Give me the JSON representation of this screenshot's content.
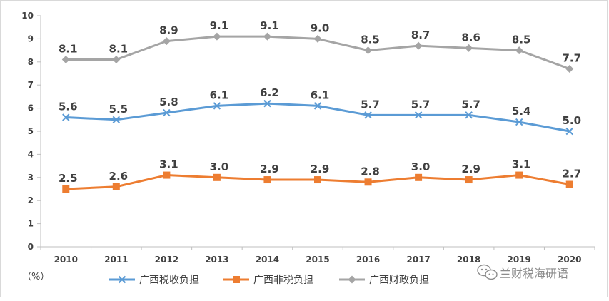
{
  "chart_data": {
    "type": "line",
    "x": [
      "2010",
      "2011",
      "2012",
      "2013",
      "2014",
      "2015",
      "2016",
      "2017",
      "2018",
      "2019",
      "2020"
    ],
    "ylim": [
      0,
      10
    ],
    "yticks": [
      "0",
      "1",
      "2",
      "3",
      "4",
      "5",
      "6",
      "7",
      "8",
      "9",
      "10"
    ],
    "unit_label": "（%）",
    "grid": false,
    "legend_position": "bottom",
    "series": [
      {
        "name": "广西税收负担",
        "color": "#5b9bd5",
        "marker": "x",
        "values": [
          5.6,
          5.5,
          5.8,
          6.1,
          6.2,
          6.1,
          5.7,
          5.7,
          5.7,
          5.4,
          5.0
        ],
        "labels": [
          "5.6",
          "5.5",
          "5.8",
          "6.1",
          "6.2",
          "6.1",
          "5.7",
          "5.7",
          "5.7",
          "5.4",
          "5.0"
        ]
      },
      {
        "name": "广西非税负担",
        "color": "#ed7d31",
        "marker": "square",
        "values": [
          2.5,
          2.6,
          3.1,
          3.0,
          2.9,
          2.9,
          2.8,
          3.0,
          2.9,
          3.1,
          2.7
        ],
        "labels": [
          "2.5",
          "2.6",
          "3.1",
          "3.0",
          "2.9",
          "2.9",
          "2.8",
          "3.0",
          "2.9",
          "3.1",
          "2.7"
        ]
      },
      {
        "name": "广西财政负担",
        "color": "#a5a5a5",
        "marker": "diamond",
        "values": [
          8.1,
          8.1,
          8.9,
          9.1,
          9.1,
          9.0,
          8.5,
          8.7,
          8.6,
          8.5,
          7.7
        ],
        "labels": [
          "8.1",
          "8.1",
          "8.9",
          "9.1",
          "9.1",
          "9.0",
          "8.5",
          "8.7",
          "8.6",
          "8.5",
          "7.7"
        ]
      }
    ]
  },
  "watermark": {
    "text": "兰财税海研语",
    "icon": "wechat-icon"
  }
}
